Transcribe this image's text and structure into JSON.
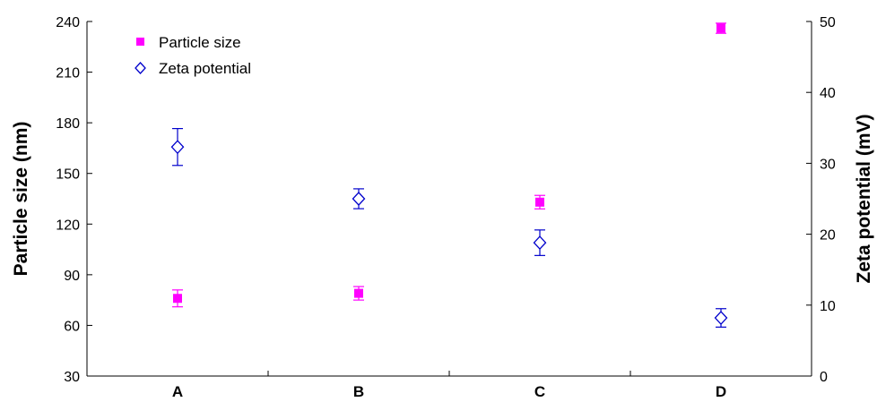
{
  "chart_data": {
    "type": "scatter",
    "categories": [
      "A",
      "B",
      "C",
      "D"
    ],
    "ylabel": "Particle size (nm)",
    "y2label": "Zeta potential (mV)",
    "ylim": [
      30,
      240
    ],
    "y2lim": [
      0,
      50
    ],
    "yticks": [
      "30",
      "60",
      "90",
      "120",
      "150",
      "180",
      "210",
      "240"
    ],
    "y2ticks": [
      "0",
      "10",
      "20",
      "30",
      "40",
      "50"
    ],
    "grid": false,
    "legend_position": "top-left",
    "series": [
      {
        "name": "Particle size",
        "axis": "left",
        "marker": "filled-square",
        "color": "#ff00ff",
        "values": [
          76,
          79,
          133,
          236
        ],
        "errors": [
          5,
          4,
          4,
          3
        ]
      },
      {
        "name": "Zeta potential",
        "axis": "right",
        "marker": "open-diamond",
        "color": "#0000cc",
        "values": [
          32.3,
          25.0,
          18.8,
          8.2
        ],
        "errors": [
          2.6,
          1.4,
          1.8,
          1.3
        ]
      }
    ]
  }
}
